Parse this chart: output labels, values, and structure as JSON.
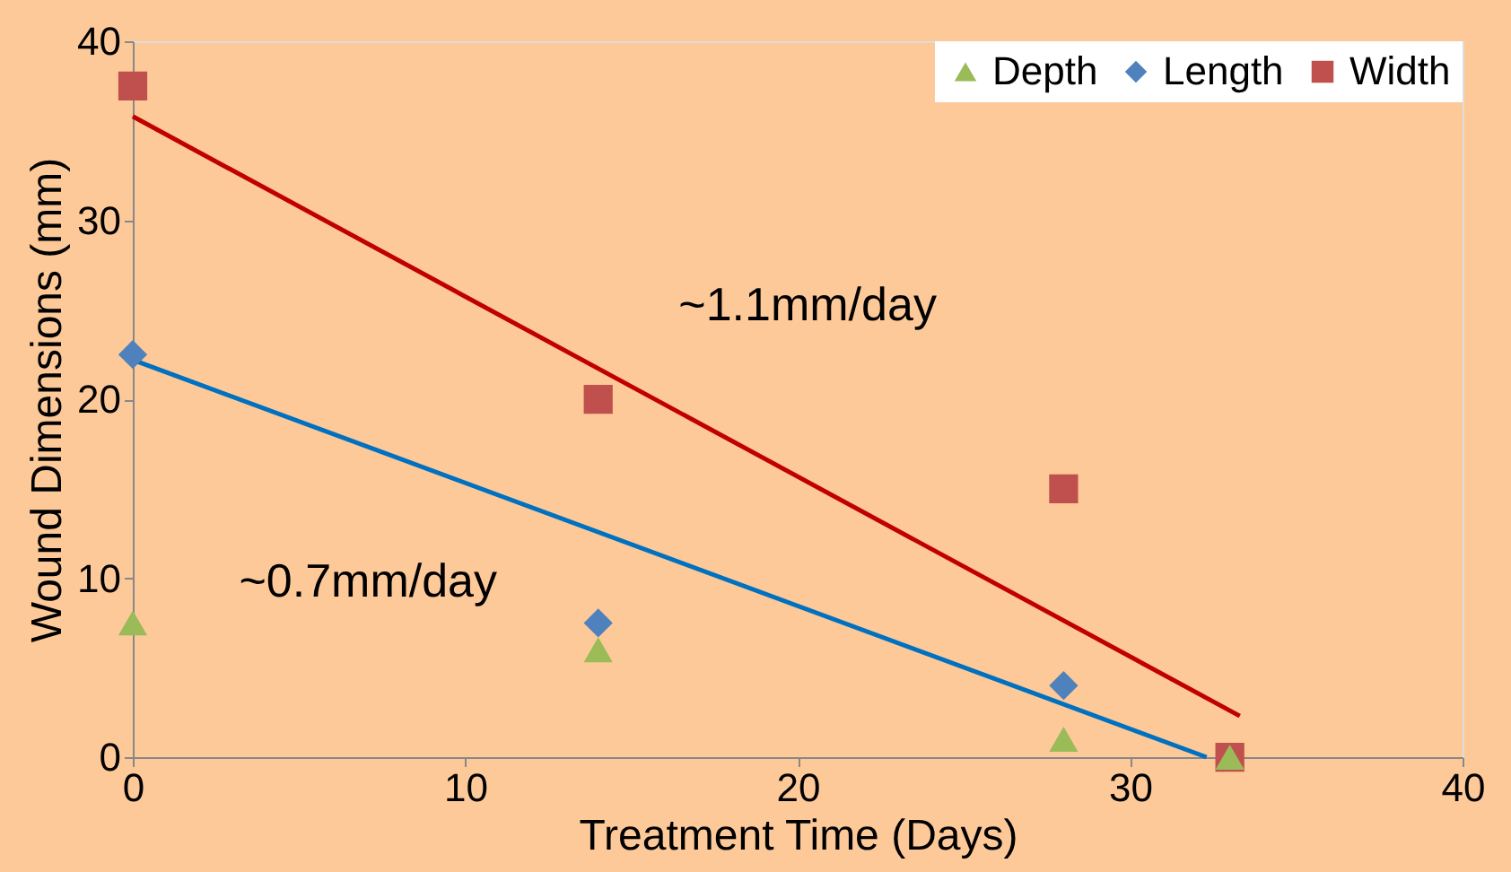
{
  "chart_data": {
    "type": "scatter",
    "xlabel": "Treatment Time (Days)",
    "ylabel": "Wound Dimensions (mm)",
    "xlim": [
      0,
      40
    ],
    "xticks": [
      0,
      10,
      20,
      30,
      40
    ],
    "ylim": [
      0,
      40
    ],
    "yticks": [
      0,
      10,
      20,
      30,
      40
    ],
    "grid": false,
    "legend": "top right",
    "series": [
      {
        "name": "Depth",
        "color": "#9bbb59",
        "marker": "triangle",
        "x": [
          0,
          14,
          28,
          33
        ],
        "values": [
          7.5,
          6,
          1,
          0
        ]
      },
      {
        "name": "Length",
        "color": "#4f81bd",
        "marker": "diamond",
        "x": [
          0,
          14,
          28
        ],
        "values": [
          22.5,
          7.5,
          4
        ]
      },
      {
        "name": "Width",
        "color": "#c0504d",
        "marker": "square",
        "x": [
          0,
          14,
          28,
          33
        ],
        "values": [
          37.5,
          20,
          15,
          0
        ]
      },
      {
        "type": "line",
        "color": "#c00000",
        "x": [
          0,
          33.3
        ],
        "values": [
          35.8,
          2.3
        ]
      },
      {
        "type": "line",
        "color": "#0070c0",
        "x": [
          0,
          32.3
        ],
        "values": [
          22.2,
          0
        ]
      }
    ],
    "annotations": [
      "~1.1mm/day",
      "~0.7mm/day"
    ]
  }
}
